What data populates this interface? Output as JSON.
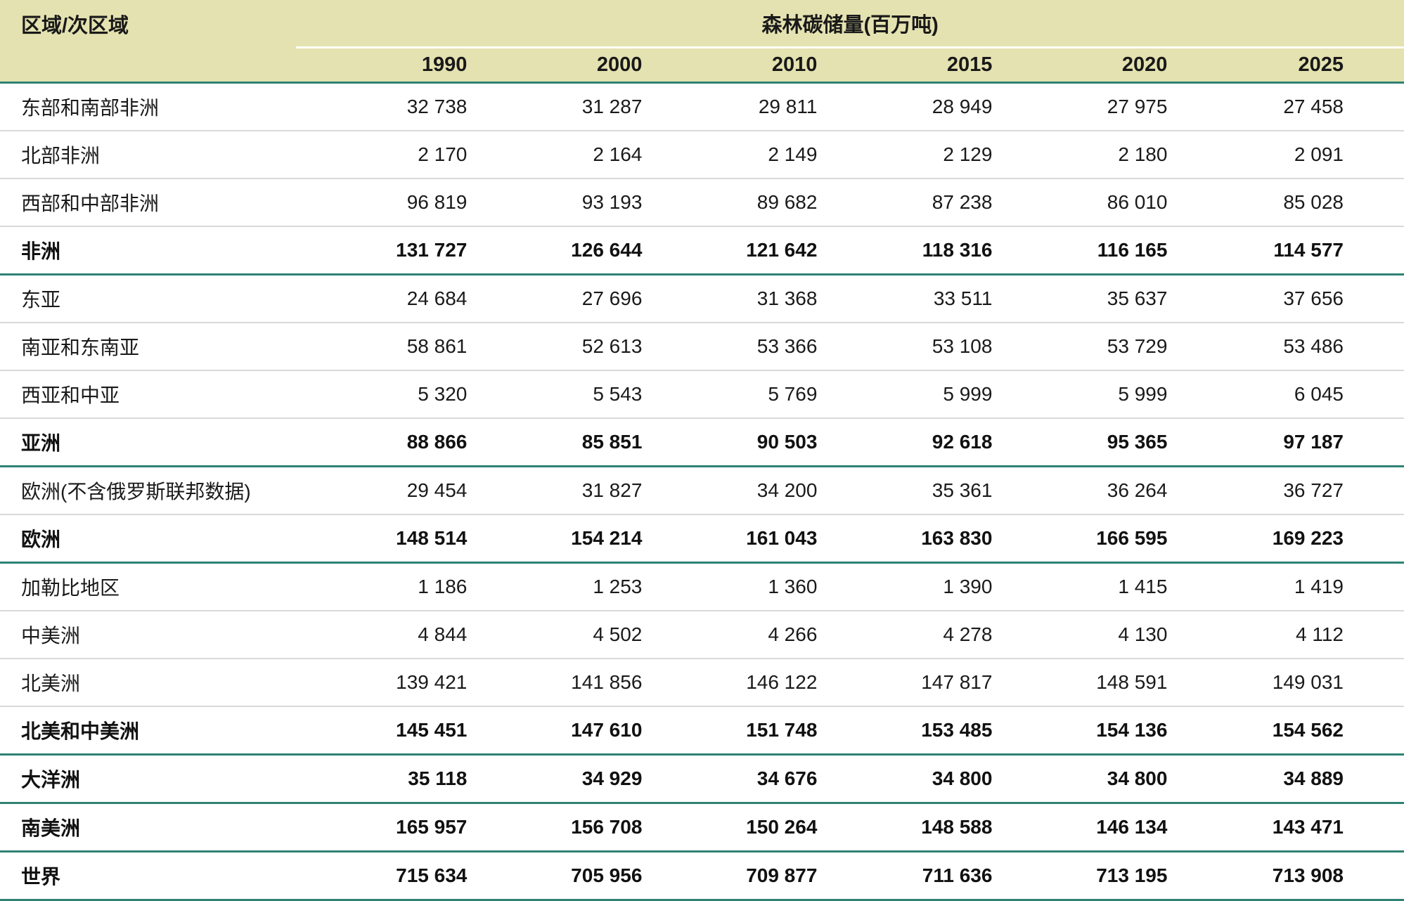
{
  "table": {
    "region_header": "区域/次区域",
    "group_header": "森林碳储量(百万吨)",
    "years": [
      "1990",
      "2000",
      "2010",
      "2015",
      "2020",
      "2025"
    ],
    "rows": [
      {
        "region": "东部和南部非洲",
        "bold": false,
        "sep": "gray",
        "values": [
          "32 738",
          "31 287",
          "29 811",
          "28 949",
          "27 975",
          "27 458"
        ]
      },
      {
        "region": "北部非洲",
        "bold": false,
        "sep": "gray",
        "values": [
          "2 170",
          "2 164",
          "2 149",
          "2 129",
          "2 180",
          "2 091"
        ]
      },
      {
        "region": "西部和中部非洲",
        "bold": false,
        "sep": "gray",
        "values": [
          "96 819",
          "93 193",
          "89 682",
          "87 238",
          "86 010",
          "85 028"
        ]
      },
      {
        "region": "非洲",
        "bold": true,
        "sep": "teal",
        "values": [
          "131 727",
          "126 644",
          "121 642",
          "118 316",
          "116 165",
          "114 577"
        ]
      },
      {
        "region": "东亚",
        "bold": false,
        "sep": "gray",
        "values": [
          "24 684",
          "27 696",
          "31 368",
          "33 511",
          "35 637",
          "37 656"
        ]
      },
      {
        "region": "南亚和东南亚",
        "bold": false,
        "sep": "gray",
        "values": [
          "58 861",
          "52 613",
          "53 366",
          "53 108",
          "53 729",
          "53 486"
        ]
      },
      {
        "region": "西亚和中亚",
        "bold": false,
        "sep": "gray",
        "values": [
          "5 320",
          "5 543",
          "5 769",
          "5 999",
          "5 999",
          "6 045"
        ]
      },
      {
        "region": "亚洲",
        "bold": true,
        "sep": "teal",
        "values": [
          "88 866",
          "85 851",
          "90 503",
          "92 618",
          "95 365",
          "97 187"
        ]
      },
      {
        "region": "欧洲(不含俄罗斯联邦数据)",
        "bold": false,
        "sep": "gray",
        "values": [
          "29 454",
          "31 827",
          "34 200",
          "35 361",
          "36 264",
          "36 727"
        ]
      },
      {
        "region": "欧洲",
        "bold": true,
        "sep": "teal",
        "values": [
          "148 514",
          "154 214",
          "161 043",
          "163 830",
          "166 595",
          "169 223"
        ]
      },
      {
        "region": "加勒比地区",
        "bold": false,
        "sep": "gray",
        "values": [
          "1 186",
          "1 253",
          "1 360",
          "1 390",
          "1 415",
          "1 419"
        ]
      },
      {
        "region": "中美洲",
        "bold": false,
        "sep": "gray",
        "values": [
          "4 844",
          "4 502",
          "4 266",
          "4 278",
          "4 130",
          "4 112"
        ]
      },
      {
        "region": "北美洲",
        "bold": false,
        "sep": "gray",
        "values": [
          "139 421",
          "141 856",
          "146 122",
          "147 817",
          "148 591",
          "149 031"
        ]
      },
      {
        "region": "北美和中美洲",
        "bold": true,
        "sep": "teal",
        "values": [
          "145 451",
          "147 610",
          "151 748",
          "153 485",
          "154 136",
          "154 562"
        ]
      },
      {
        "region": "大洋洲",
        "bold": true,
        "sep": "teal",
        "values": [
          "35 118",
          "34 929",
          "34 676",
          "34 800",
          "34 800",
          "34 889"
        ]
      },
      {
        "region": "南美洲",
        "bold": true,
        "sep": "teal",
        "values": [
          "165 957",
          "156 708",
          "150 264",
          "148 588",
          "146 134",
          "143 471"
        ]
      },
      {
        "region": "世界",
        "bold": true,
        "sep": "teal",
        "values": [
          "715 634",
          "705 956",
          "709 877",
          "711 636",
          "713 195",
          "713 908"
        ]
      }
    ]
  },
  "colors": {
    "header_background": "#e4e2b0",
    "section_rule": "#2e8273",
    "row_rule": "#d9d9d9",
    "spanner_rule": "#ffffff",
    "text": "#1a1a1a"
  }
}
